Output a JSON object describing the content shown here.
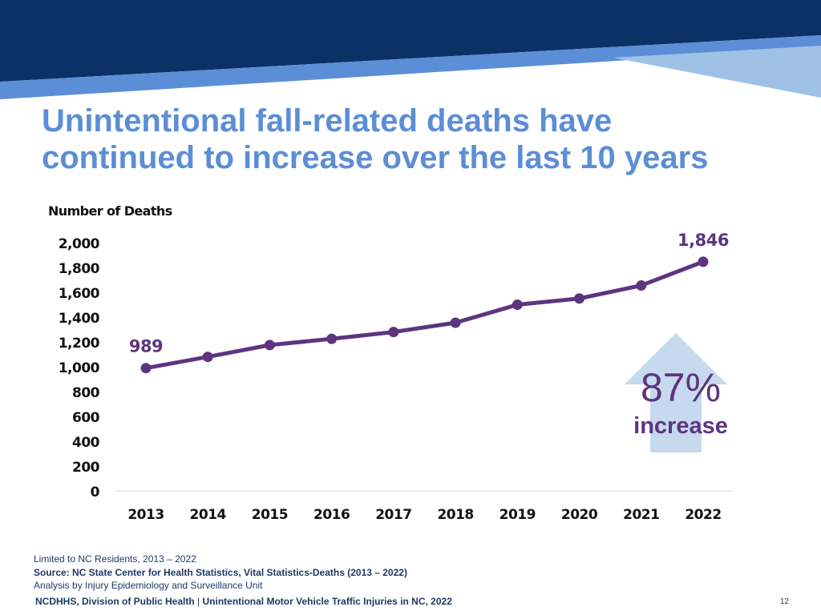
{
  "slide": {
    "title_line1": "Unintentional fall-related deaths have",
    "title_line2": "continued to increase over the last 10 years",
    "page_number": "12"
  },
  "colors": {
    "banner_dark": "#0b3165",
    "banner_mid": "#5b8ed6",
    "banner_light": "#9fc1e6",
    "title": "#5b8ed6",
    "series": "#5e3480",
    "arrow": "#c6d9ee",
    "footer_text": "#1f3864"
  },
  "chart_data": {
    "type": "line",
    "title": "",
    "ylabel": "Number of Deaths",
    "xlabel": "",
    "categories": [
      "2013",
      "2014",
      "2015",
      "2016",
      "2017",
      "2018",
      "2019",
      "2020",
      "2021",
      "2022"
    ],
    "series": [
      {
        "values": [
          989,
          1080,
          1175,
          1225,
          1280,
          1355,
          1500,
          1550,
          1655,
          1846
        ]
      }
    ],
    "ylim": [
      0,
      2000
    ],
    "yticks": [
      "0",
      "200",
      "400",
      "600",
      "800",
      "1,000",
      "1,200",
      "1,400",
      "1,600",
      "1,800",
      "2,000"
    ],
    "grid": false,
    "data_labels": [
      {
        "category": "2013",
        "text": "989"
      },
      {
        "category": "2022",
        "text": "1,846"
      }
    ],
    "annotation": {
      "percent": "87%",
      "label": "increase",
      "icon": "up-arrow-icon"
    }
  },
  "footer": {
    "note1": "Limited to NC Residents, 2013 – 2022",
    "source": "Source: NC State Center for Health Statistics, Vital Statistics-Deaths (2013 – 2022)",
    "analysis": "Analysis by Injury Epidemiology and Surveillance Unit",
    "org_part1": "NCDHHS, Division of Public Health",
    "org_sep": " | ",
    "org_part2": "Unintentional Motor Vehicle Traffic Injuries in NC, 2022"
  }
}
